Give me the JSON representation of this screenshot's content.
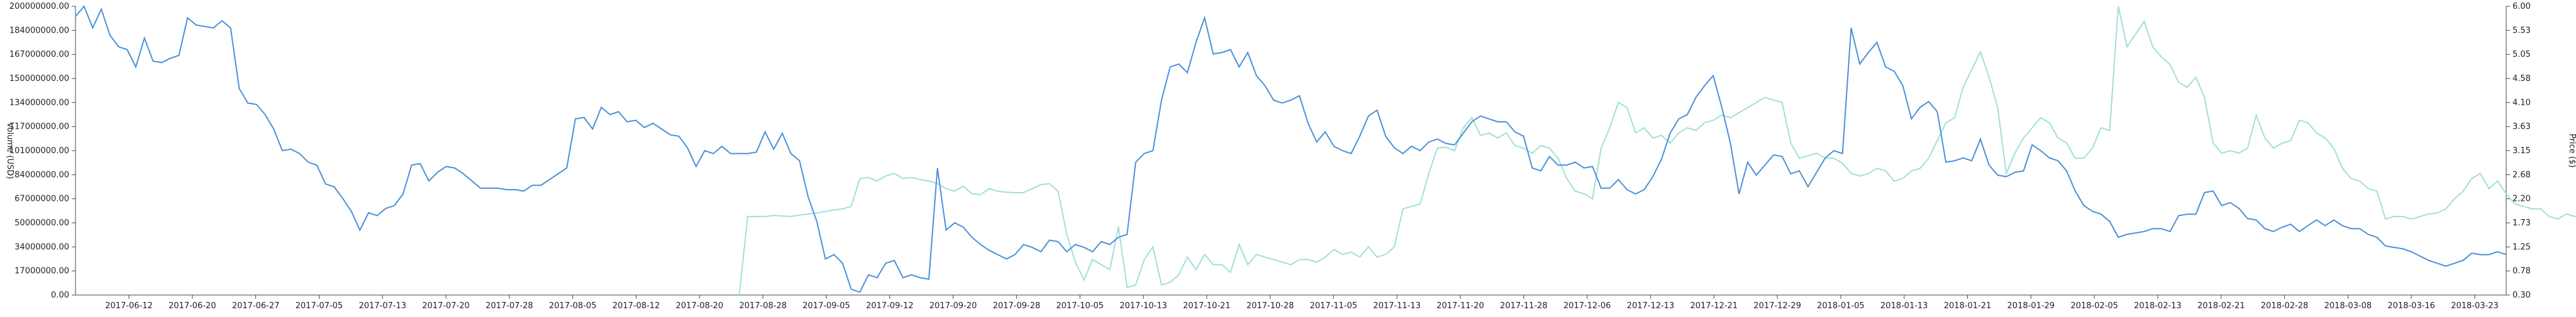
{
  "chart_data": {
    "type": "line",
    "title": "",
    "ylabel_left": "Volume (USD)",
    "ylabel_right": "Price ($)",
    "colors": {
      "volume": "#4a90d9",
      "price": "#9fe0d8"
    },
    "x_tick_labels": [
      "2017-06-12",
      "2017-06-20",
      "2017-06-27",
      "2017-07-05",
      "2017-07-13",
      "2017-07-20",
      "2017-07-28",
      "2017-08-05",
      "2017-08-12",
      "2017-08-20",
      "2017-08-28",
      "2017-09-05",
      "2017-09-12",
      "2017-09-20",
      "2017-09-28",
      "2017-10-05",
      "2017-10-13",
      "2017-10-21",
      "2017-10-28",
      "2017-11-05",
      "2017-11-13",
      "2017-11-20",
      "2017-11-28",
      "2017-12-06",
      "2017-12-13",
      "2017-12-21",
      "2017-12-29",
      "2018-01-05",
      "2018-01-13",
      "2018-01-21",
      "2018-01-29",
      "2018-02-05",
      "2018-02-13",
      "2018-02-21",
      "2018-02-28",
      "2018-03-08",
      "2018-03-16",
      "2018-03-23"
    ],
    "y_left_ticks": [
      "0.00",
      "17000000.00",
      "34000000.00",
      "50000000.00",
      "67000000.00",
      "84000000.00",
      "101000000.00",
      "117000000.00",
      "134000000.00",
      "150000000.00",
      "167000000.00",
      "184000000.00",
      "200000000.00"
    ],
    "y_right_ticks": [
      "0.30",
      "0.78",
      "1.25",
      "1.73",
      "2.20",
      "2.68",
      "3.15",
      "3.63",
      "4.10",
      "4.58",
      "5.05",
      "5.53",
      "6.00"
    ],
    "ylim_left": [
      0,
      200000000
    ],
    "ylim_right": [
      0.3,
      6.0
    ],
    "series": [
      {
        "key": "volume",
        "axis": "left",
        "values": [
          193000000,
          200000000,
          185000000,
          198000000,
          180000000,
          172000000,
          170000000,
          158000000,
          178000000,
          162000000,
          161000000,
          164000000,
          166000000,
          192000000,
          187000000,
          186000000,
          185000000,
          190000000,
          185000000,
          143000000,
          133000000,
          132000000,
          125000000,
          115000000,
          100000000,
          101000000,
          98000000,
          92000000,
          90000000,
          77000000,
          75000000,
          67000000,
          58000000,
          45000000,
          57000000,
          55000000,
          60000000,
          62000000,
          70000000,
          90000000,
          91000000,
          79000000,
          85000000,
          89000000,
          88000000,
          84000000,
          79000000,
          74000000,
          74000000,
          74000000,
          73000000,
          73000000,
          72000000,
          76000000,
          76000000,
          80000000,
          84000000,
          88000000,
          122000000,
          123000000,
          115000000,
          130000000,
          125000000,
          127000000,
          120000000,
          121000000,
          116000000,
          119000000,
          115000000,
          111000000,
          110000000,
          102000000,
          89000000,
          100000000,
          98000000,
          103000000,
          98000000,
          98000000,
          98000000,
          99000000,
          113000000,
          101000000,
          112000000,
          98000000,
          93000000,
          68000000,
          51000000,
          25000000,
          28000000,
          22000000,
          4000000,
          2000000,
          14000000,
          12000000,
          22000000,
          24000000,
          12000000,
          14000000,
          12000000,
          11000000,
          88000000,
          45000000,
          50000000,
          47000000,
          40000000,
          35000000,
          31000000,
          28000000,
          25000000,
          28000000,
          35000000,
          33000000,
          30000000,
          38000000,
          37000000,
          30000000,
          35000000,
          33000000,
          30000000,
          37000000,
          35000000,
          40000000,
          42000000,
          92000000,
          98000000,
          100000000,
          135000000,
          158000000,
          160000000,
          154000000,
          175000000,
          192000000,
          167000000,
          168000000,
          170000000,
          158000000,
          168000000,
          152000000,
          145000000,
          135000000,
          133000000,
          135000000,
          138000000,
          119000000,
          106000000,
          113000000,
          103000000,
          100000000,
          98000000,
          110000000,
          124000000,
          128000000,
          110000000,
          102000000,
          98000000,
          103000000,
          100000000,
          106000000,
          108000000,
          105000000,
          104000000,
          112000000,
          120000000,
          124000000,
          122000000,
          120000000,
          120000000,
          113000000,
          110000000,
          88000000,
          86000000,
          96000000,
          90000000,
          90000000,
          92000000,
          88000000,
          89000000,
          74000000,
          74000000,
          80000000,
          73000000,
          70000000,
          73000000,
          82000000,
          94000000,
          112000000,
          122000000,
          125000000,
          137000000,
          145000000,
          152000000,
          130000000,
          105000000,
          70000000,
          92000000,
          83000000,
          90000000,
          97000000,
          96000000,
          84000000,
          86000000,
          75000000,
          85000000,
          95000000,
          100000000,
          98000000,
          185000000,
          160000000,
          168000000,
          175000000,
          158000000,
          155000000,
          145000000,
          122000000,
          130000000,
          134000000,
          127000000,
          92000000,
          93000000,
          95000000,
          93000000,
          108000000,
          90000000,
          83000000,
          82000000,
          85000000,
          86000000,
          104000000,
          100000000,
          95000000,
          93000000,
          86000000,
          72000000,
          62000000,
          58000000,
          56000000,
          51000000,
          40000000,
          42000000,
          43000000,
          44000000,
          46000000,
          46000000,
          44000000,
          55000000,
          56000000,
          56000000,
          71000000,
          72000000,
          62000000,
          64000000,
          60000000,
          53000000,
          52000000,
          46000000,
          44000000,
          47000000,
          49000000,
          44000000,
          48000000,
          52000000,
          48000000,
          52000000,
          48000000,
          46000000,
          46000000,
          42000000,
          40000000,
          34000000,
          33000000,
          32000000,
          30000000,
          27000000,
          24000000,
          22000000,
          20000000,
          22000000,
          24000000,
          29000000,
          28000000,
          28000000,
          30000000,
          28000000
        ]
      },
      {
        "key": "price",
        "axis": "right",
        "start_index": 77,
        "values": [
          0.3,
          1.85,
          1.85,
          1.85,
          1.87,
          1.86,
          1.85,
          1.88,
          1.9,
          1.92,
          1.95,
          1.98,
          2.0,
          2.05,
          2.6,
          2.62,
          2.55,
          2.65,
          2.7,
          2.6,
          2.62,
          2.58,
          2.55,
          2.5,
          2.4,
          2.35,
          2.45,
          2.3,
          2.28,
          2.4,
          2.35,
          2.33,
          2.32,
          2.32,
          2.4,
          2.48,
          2.5,
          2.35,
          1.5,
          0.95,
          0.6,
          1.0,
          0.9,
          0.8,
          1.65,
          0.45,
          0.5,
          1.0,
          1.25,
          0.5,
          0.55,
          0.7,
          1.05,
          0.8,
          1.1,
          0.9,
          0.9,
          0.75,
          1.3,
          0.9,
          1.1,
          1.05,
          1.0,
          0.95,
          0.9,
          1.0,
          1.0,
          0.95,
          1.05,
          1.2,
          1.1,
          1.15,
          1.05,
          1.25,
          1.05,
          1.1,
          1.25,
          2.0,
          2.05,
          2.1,
          2.7,
          3.2,
          3.22,
          3.15,
          3.6,
          3.8,
          3.45,
          3.5,
          3.4,
          3.5,
          3.25,
          3.2,
          3.1,
          3.25,
          3.2,
          3.0,
          2.6,
          2.35,
          2.3,
          2.2,
          3.2,
          3.6,
          4.1,
          4.0,
          3.5,
          3.6,
          3.4,
          3.45,
          3.3,
          3.5,
          3.6,
          3.55,
          3.7,
          3.75,
          3.85,
          3.8,
          3.9,
          4.0,
          4.1,
          4.2,
          4.15,
          4.1,
          3.3,
          3.0,
          3.05,
          3.1,
          3.0,
          3.0,
          2.9,
          2.7,
          2.65,
          2.7,
          2.8,
          2.75,
          2.55,
          2.6,
          2.75,
          2.8,
          3.0,
          3.35,
          3.7,
          3.8,
          4.4,
          4.75,
          5.1,
          4.6,
          4.0,
          2.7,
          3.1,
          3.4,
          3.6,
          3.8,
          3.7,
          3.4,
          3.3,
          3.0,
          3.0,
          3.2,
          3.6,
          3.55,
          6.0,
          5.2,
          5.45,
          5.7,
          5.2,
          5.0,
          4.85,
          4.5,
          4.4,
          4.6,
          4.2,
          3.3,
          3.1,
          3.15,
          3.1,
          3.2,
          3.85,
          3.4,
          3.2,
          3.3,
          3.35,
          3.75,
          3.7,
          3.5,
          3.4,
          3.2,
          2.8,
          2.6,
          2.55,
          2.4,
          2.35,
          1.8,
          1.85,
          1.85,
          1.8,
          1.85,
          1.9,
          1.92,
          2.0,
          2.2,
          2.35,
          2.6,
          2.7,
          2.4,
          2.55,
          2.3,
          2.1,
          2.05,
          2.0,
          2.0,
          1.85,
          1.8,
          1.9,
          1.85,
          1.9,
          1.7,
          1.7,
          1.75,
          1.7,
          1.65,
          1.6,
          1.55,
          1.5,
          1.4,
          1.35,
          1.3,
          1.25,
          1.2,
          1.15,
          1.15,
          1.2,
          1.3,
          1.35,
          1.4,
          1.4,
          1.42,
          1.45
        ]
      }
    ]
  }
}
